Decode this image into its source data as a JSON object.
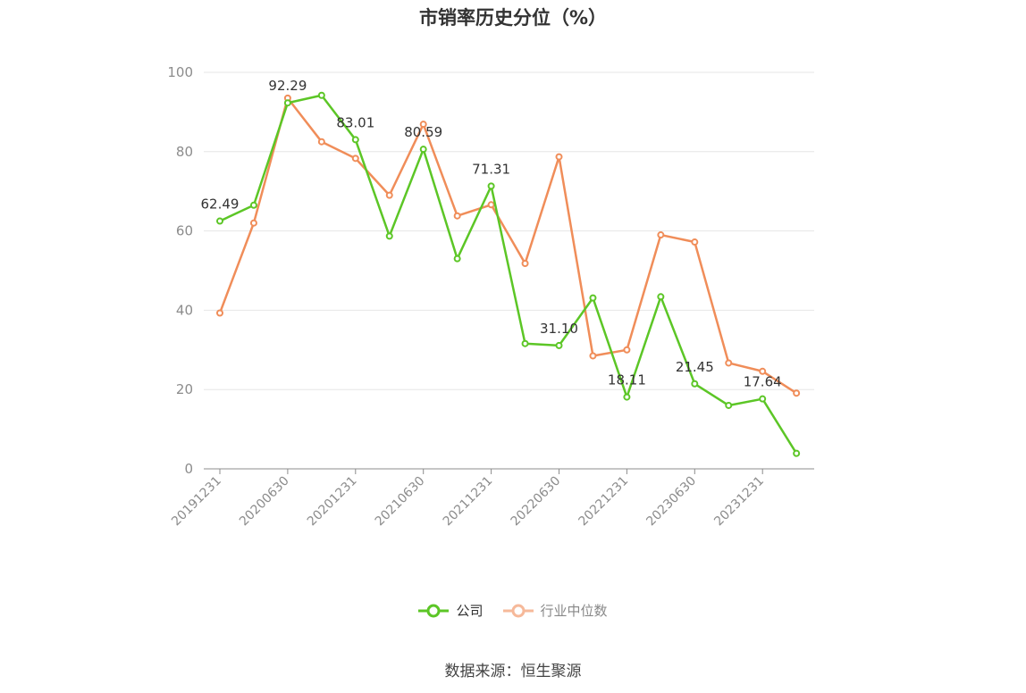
{
  "title": "市销率历史分位（%）",
  "source": "数据来源：恒生聚源",
  "colors": {
    "company": "#5cc626",
    "industry": "#f08d59",
    "grid": "#e6e6e6",
    "axis": "#8c8c8c"
  },
  "chart_data": {
    "type": "line",
    "title": "市销率历史分位（%）",
    "ylim": [
      0,
      100
    ],
    "yticks": [
      0,
      20,
      40,
      60,
      80,
      100
    ],
    "grid": true,
    "legend": "bottom-center",
    "x": [
      "20191231",
      "20200331",
      "20200630",
      "20200930",
      "20201231",
      "20210331",
      "20210630",
      "20210930",
      "20211231",
      "20220331",
      "20220630",
      "20220930",
      "20221231",
      "20230331",
      "20230630",
      "20230930",
      "20231231",
      "20240331"
    ],
    "x_tick_labels": [
      "20191231",
      "20200630",
      "20201231",
      "20210630",
      "20211231",
      "20220630",
      "20221231",
      "20230630",
      "20231231"
    ],
    "series": [
      {
        "name": "公司",
        "values": [
          62.49,
          66.5,
          92.29,
          94.2,
          83.01,
          58.7,
          80.59,
          53.0,
          71.31,
          31.6,
          31.1,
          43.1,
          18.11,
          43.4,
          21.45,
          16.0,
          17.64,
          3.9
        ],
        "labels": [
          "62.49",
          null,
          "92.29",
          null,
          "83.01",
          null,
          "80.59",
          null,
          "71.31",
          null,
          "31.10",
          null,
          "18.11",
          null,
          "21.45",
          null,
          "17.64",
          null
        ]
      },
      {
        "name": "行业中位数",
        "values": [
          39.3,
          62.0,
          93.5,
          82.5,
          78.3,
          69.0,
          86.9,
          63.8,
          66.6,
          51.8,
          78.7,
          28.5,
          30.0,
          59.0,
          57.2,
          26.7,
          24.6,
          19.1
        ]
      }
    ]
  }
}
